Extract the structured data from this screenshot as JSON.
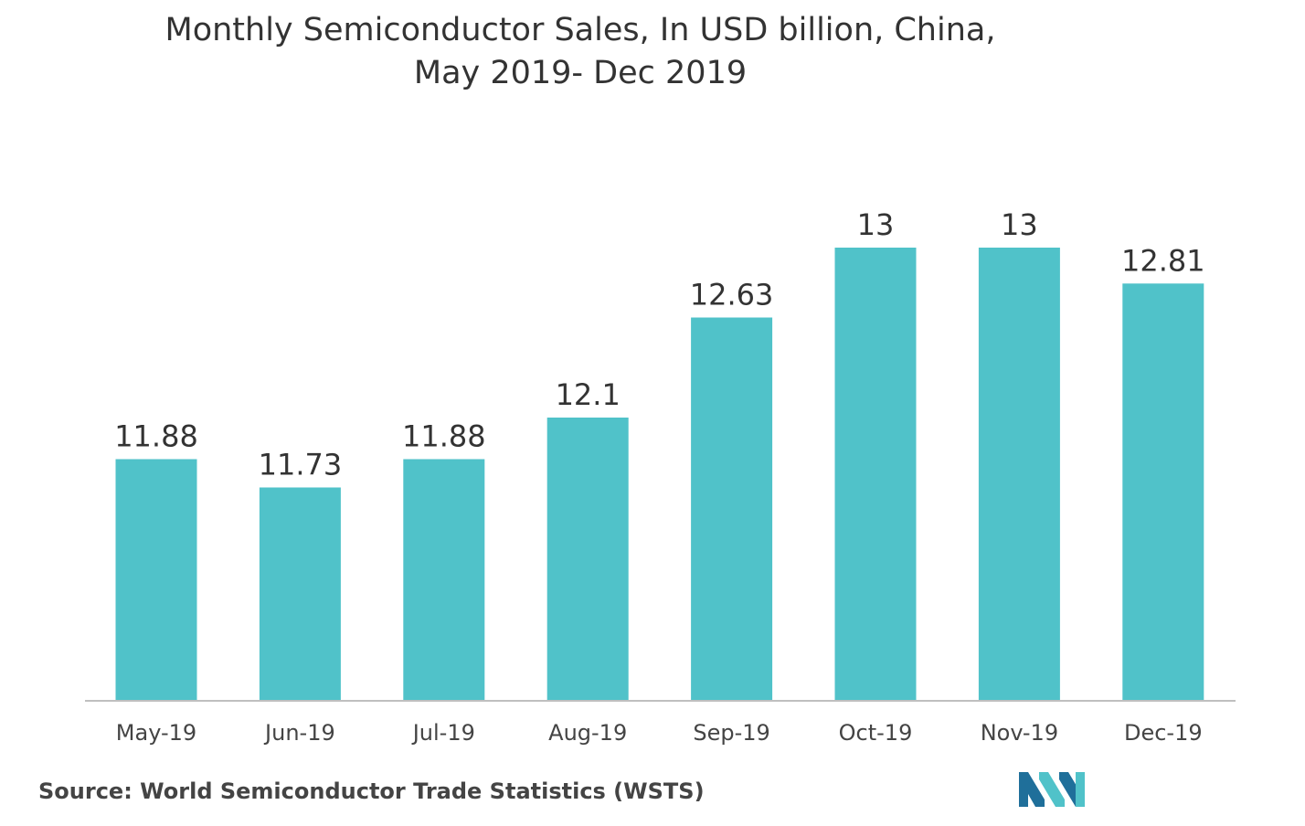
{
  "chart_data": {
    "type": "bar",
    "title_lines": [
      "Monthly Semiconductor Sales, In USD billion, China,",
      "May 2019- Dec 2019"
    ],
    "categories": [
      "May-19",
      "Jun-19",
      "Jul-19",
      "Aug-19",
      "Sep-19",
      "Oct-19",
      "Nov-19",
      "Dec-19"
    ],
    "values": [
      11.88,
      11.73,
      11.88,
      12.1,
      12.63,
      13,
      13,
      12.81
    ],
    "value_labels": [
      "11.88",
      "11.73",
      "11.88",
      "12.1",
      "12.63",
      "13",
      "13",
      "12.81"
    ],
    "ylim": [
      10.6,
      13.0
    ],
    "grid": false,
    "legend": "none",
    "bar_color": "#50c2c9"
  },
  "source": {
    "prefix": "Source:",
    "text": "World Semiconductor Trade Statistics (WSTS)"
  },
  "logo": {
    "icon": "company-logo-icon",
    "colors": [
      "#1f6f9a",
      "#50c2c9"
    ]
  }
}
